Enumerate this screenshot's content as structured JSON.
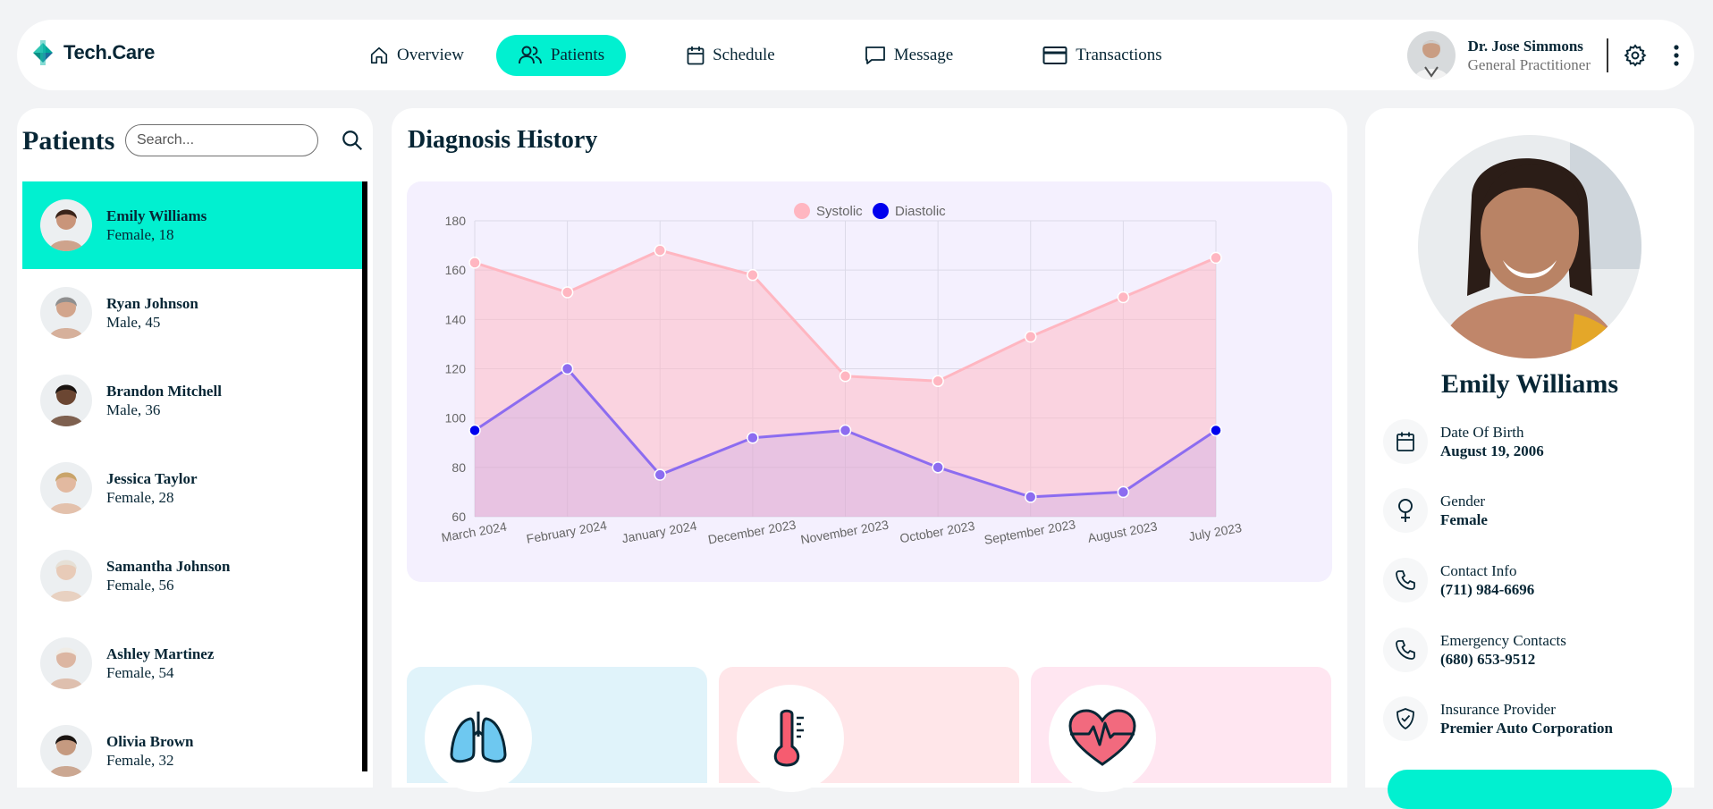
{
  "app": {
    "logo_text": "Tech.Care",
    "nav": [
      {
        "label": "Overview",
        "icon": "home-icon"
      },
      {
        "label": "Patients",
        "icon": "users-icon",
        "active": true
      },
      {
        "label": "Schedule",
        "icon": "calendar-icon"
      },
      {
        "label": "Message",
        "icon": "chat-icon"
      },
      {
        "label": "Transactions",
        "icon": "credit-card-icon"
      }
    ],
    "doctor": {
      "name": "Dr. Jose Simmons",
      "role": "General Practitioner"
    },
    "colors": {
      "accent": "#01F0D0",
      "systolic": "#FFB6C1",
      "diastolic": "#8C6CF0",
      "text": "#072635"
    }
  },
  "patients_panel": {
    "title": "Patients",
    "search_placeholder": "Search...",
    "items": [
      {
        "name": "Emily Williams",
        "meta": "Female, 18",
        "active": true
      },
      {
        "name": "Ryan Johnson",
        "meta": "Male, 45"
      },
      {
        "name": "Brandon Mitchell",
        "meta": "Male, 36"
      },
      {
        "name": "Jessica Taylor",
        "meta": "Female, 28"
      },
      {
        "name": "Samantha Johnson",
        "meta": "Female, 56"
      },
      {
        "name": "Ashley Martinez",
        "meta": "Female, 54"
      },
      {
        "name": "Olivia Brown",
        "meta": "Female, 32"
      }
    ]
  },
  "diagnosis": {
    "title": "Diagnosis History"
  },
  "chart_data": {
    "type": "line",
    "title": "",
    "xlabel": "",
    "ylabel": "",
    "categories": [
      "March 2024",
      "February 2024",
      "January 2024",
      "December 2023",
      "November 2023",
      "October 2023",
      "September 2023",
      "August 2023",
      "July 2023"
    ],
    "series": [
      {
        "name": "Systolic",
        "values": [
          163,
          151,
          168,
          158,
          117,
          115,
          133,
          149,
          165
        ],
        "color": "#FFB6C1",
        "fill": true
      },
      {
        "name": "Diastolic",
        "values": [
          95,
          120,
          77,
          92,
          95,
          80,
          68,
          70,
          95
        ],
        "color": "#8C6CF0",
        "fill": true
      }
    ],
    "ylim": [
      60,
      180
    ],
    "yticks": [
      60,
      80,
      100,
      120,
      140,
      160,
      180
    ],
    "grid": true,
    "legend": "top-center"
  },
  "vitals": [
    {
      "icon": "lungs-icon",
      "bg": "#E0F3FA"
    },
    {
      "icon": "thermometer-icon",
      "bg": "#FFE6E9"
    },
    {
      "icon": "heart-icon",
      "bg": "#FFE6F1"
    }
  ],
  "profile": {
    "name": "Emily Williams",
    "rows": [
      {
        "label": "Date Of Birth",
        "value": "August 19, 2006",
        "icon": "calendar-icon"
      },
      {
        "label": "Gender",
        "value": "Female",
        "icon": "female-icon"
      },
      {
        "label": "Contact Info",
        "value": "(711) 984-6696",
        "icon": "phone-icon"
      },
      {
        "label": "Emergency Contacts",
        "value": "(680) 653-9512",
        "icon": "phone-icon"
      },
      {
        "label": "Insurance Provider",
        "value": "Premier Auto Corporation",
        "icon": "shield-icon"
      }
    ]
  }
}
